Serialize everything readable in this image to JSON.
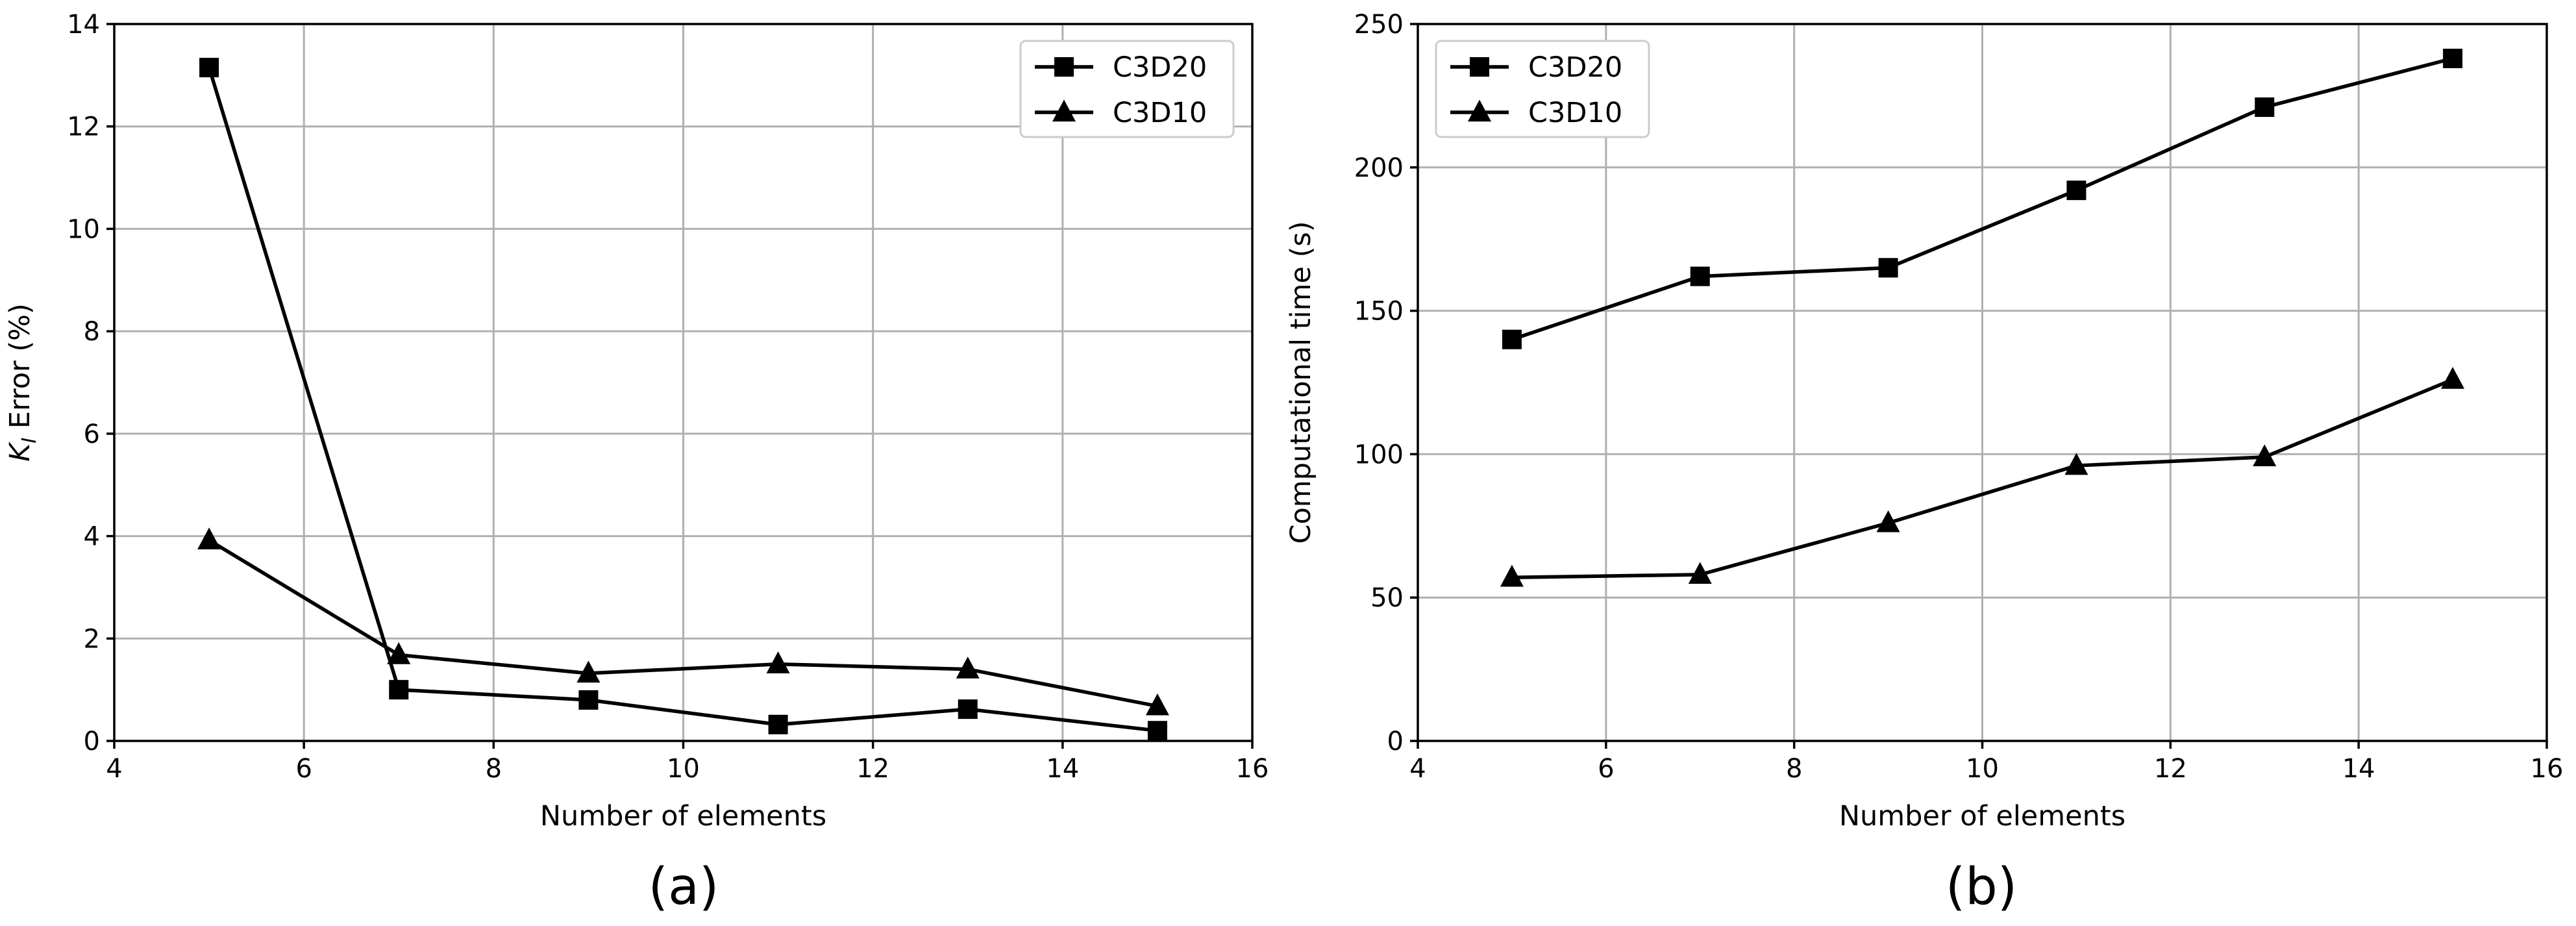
{
  "chart_data": [
    {
      "id": "a",
      "type": "line",
      "caption": "(a)",
      "xlabel": "Number of elements",
      "ylabel": "K_I Error (%)",
      "ylabel_main": "K",
      "ylabel_sub": "I",
      "ylabel_rest": " Error (%)",
      "xlim": [
        4,
        16
      ],
      "ylim": [
        0,
        14
      ],
      "xticks": [
        4,
        6,
        8,
        10,
        12,
        14,
        16
      ],
      "xtick_labels": [
        "4",
        "6",
        "8",
        "10",
        "12",
        "14",
        "16"
      ],
      "yticks": [
        0,
        2,
        4,
        6,
        8,
        10,
        12,
        14
      ],
      "ytick_labels": [
        "0",
        "2",
        "4",
        "6",
        "8",
        "10",
        "12",
        "14"
      ],
      "grid": true,
      "legend_position": "top-right",
      "series": [
        {
          "name": "C3D20",
          "marker": "square",
          "x": [
            5,
            7,
            9,
            11,
            13,
            15
          ],
          "y": [
            13.15,
            1.0,
            0.8,
            0.32,
            0.62,
            0.2
          ]
        },
        {
          "name": "C3D10",
          "marker": "triangle",
          "x": [
            5,
            7,
            9,
            11,
            13,
            15
          ],
          "y": [
            3.92,
            1.68,
            1.32,
            1.5,
            1.4,
            0.68
          ]
        }
      ]
    },
    {
      "id": "b",
      "type": "line",
      "caption": "(b)",
      "xlabel": "Number of elements",
      "ylabel": "Computational time (s)",
      "xlim": [
        4,
        16
      ],
      "ylim": [
        0,
        250
      ],
      "xticks": [
        4,
        6,
        8,
        10,
        12,
        14,
        16
      ],
      "xtick_labels": [
        "4",
        "6",
        "8",
        "10",
        "12",
        "14",
        "16"
      ],
      "yticks": [
        0,
        50,
        100,
        150,
        200,
        250
      ],
      "ytick_labels": [
        "0",
        "50",
        "100",
        "150",
        "200",
        "250"
      ],
      "grid": true,
      "legend_position": "top-left",
      "series": [
        {
          "name": "C3D20",
          "marker": "square",
          "x": [
            5,
            7,
            9,
            11,
            13,
            15
          ],
          "y": [
            140,
            162,
            165,
            192,
            221,
            238
          ]
        },
        {
          "name": "C3D10",
          "marker": "triangle",
          "x": [
            5,
            7,
            9,
            11,
            13,
            15
          ],
          "y": [
            57,
            58,
            76,
            96,
            99,
            126
          ]
        }
      ]
    }
  ]
}
